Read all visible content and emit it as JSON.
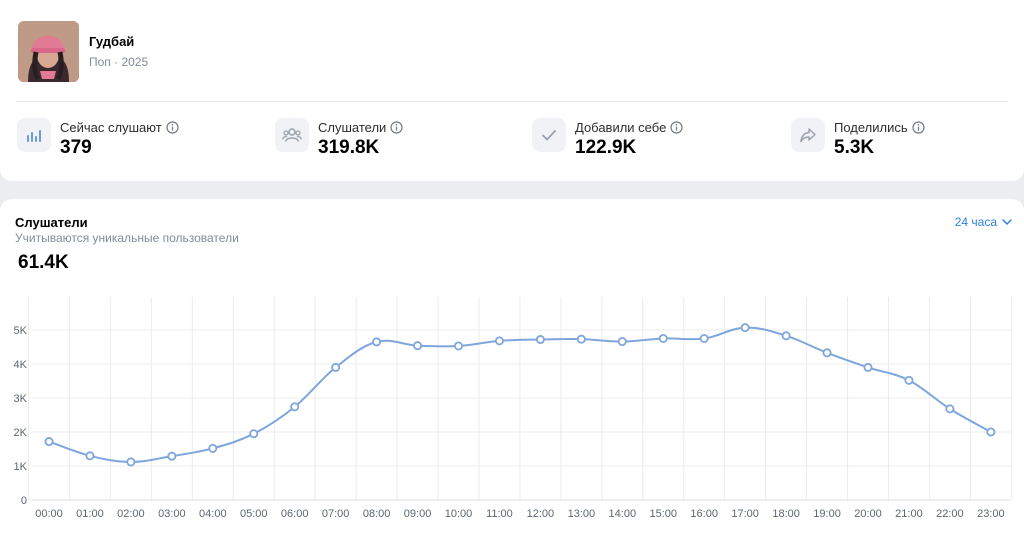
{
  "release": {
    "title": "Гудбай",
    "subtitle": "Поп · 2025"
  },
  "stats": [
    {
      "label": "Сейчас слушают",
      "value": "379",
      "icon": "equalizer-icon"
    },
    {
      "label": "Слушатели",
      "value": "319.8K",
      "icon": "users-icon"
    },
    {
      "label": "Добавили себе",
      "value": "122.9K",
      "icon": "checkmark-icon"
    },
    {
      "label": "Поделились",
      "value": "5.3K",
      "icon": "share-icon"
    }
  ],
  "chart_section": {
    "title": "Слушатели",
    "subtitle": "Учитываются уникальные пользователи",
    "total": "61.4K",
    "period": "24 часа"
  },
  "colors": {
    "accent": "#2d81e0",
    "line": "#7ea6dc",
    "muted": "#818c99"
  },
  "chart_data": {
    "type": "line",
    "title": "",
    "xlabel": "",
    "ylabel": "",
    "x": [
      "00:00",
      "01:00",
      "02:00",
      "03:00",
      "04:00",
      "05:00",
      "06:00",
      "07:00",
      "08:00",
      "09:00",
      "10:00",
      "11:00",
      "12:00",
      "13:00",
      "14:00",
      "15:00",
      "16:00",
      "17:00",
      "18:00",
      "19:00",
      "20:00",
      "21:00",
      "22:00",
      "23:00"
    ],
    "series": [
      {
        "values": [
          1720,
          1300,
          1120,
          1290,
          1520,
          1950,
          2740,
          3900,
          4650,
          4540,
          4530,
          4680,
          4720,
          4730,
          4660,
          4750,
          4750,
          5070,
          4830,
          4330,
          3900,
          3520,
          2680,
          2000
        ]
      }
    ],
    "ylim": [
      0,
      5000
    ],
    "yticks": [
      0,
      1000,
      2000,
      3000,
      4000,
      5000
    ],
    "ytick_labels": [
      "0",
      "1K",
      "2K",
      "3K",
      "4K",
      "5K"
    ],
    "grid": true
  }
}
